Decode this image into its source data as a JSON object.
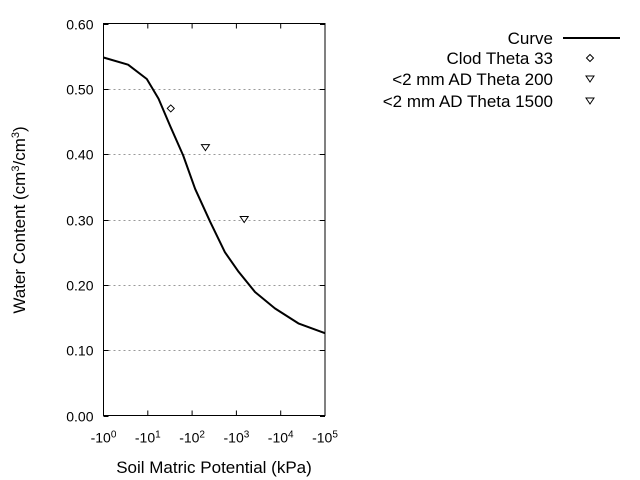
{
  "chart_data": {
    "type": "scatter",
    "title": "",
    "xlabel": "Soil Matric Potential (kPa)",
    "ylabel_main": "Water Content (cm",
    "ylabel_sup1": "3",
    "ylabel_mid": "/cm",
    "ylabel_sup2": "3",
    "ylabel_end": ")",
    "x_scale": "log",
    "xlim": [
      -1,
      -100000
    ],
    "ylim": [
      0,
      0.6
    ],
    "grid": "horizontal dotted",
    "legend_placement": "outside top-right",
    "x_ticks": [
      {
        "base": "-10",
        "exp": "0"
      },
      {
        "base": "-10",
        "exp": "1"
      },
      {
        "base": "-10",
        "exp": "2"
      },
      {
        "base": "-10",
        "exp": "3"
      },
      {
        "base": "-10",
        "exp": "4"
      },
      {
        "base": "-10",
        "exp": "5"
      }
    ],
    "y_ticks": [
      "0.00",
      "0.10",
      "0.20",
      "0.30",
      "0.40",
      "0.50",
      "0.60"
    ],
    "y_tick_values": [
      0,
      0.1,
      0.2,
      0.3,
      0.4,
      0.5,
      0.6
    ],
    "series": [
      {
        "name": "Curve",
        "kind": "line",
        "color": "#000000",
        "x": [
          -1,
          -3.6,
          -9.5,
          -17.4,
          -31.6,
          -63.1,
          -117,
          -257,
          -550,
          -1122,
          -2630,
          -7413,
          -25119,
          -100000
        ],
        "y": [
          0.548,
          0.537,
          0.515,
          0.485,
          0.444,
          0.398,
          0.347,
          0.296,
          0.25,
          0.22,
          0.189,
          0.164,
          0.141,
          0.126
        ]
      },
      {
        "name": "Clod Theta 33",
        "kind": "points",
        "marker": "diamond",
        "x": [
          -33
        ],
        "y": [
          0.47
        ]
      },
      {
        "name": "<2 mm AD Theta 200",
        "kind": "points",
        "marker": "triangle-down",
        "x": [
          -200
        ],
        "y": [
          0.41
        ]
      },
      {
        "name": "<2 mm AD Theta 1500",
        "kind": "points",
        "marker": "triangle-down",
        "x": [
          -1500
        ],
        "y": [
          0.3
        ]
      }
    ]
  }
}
